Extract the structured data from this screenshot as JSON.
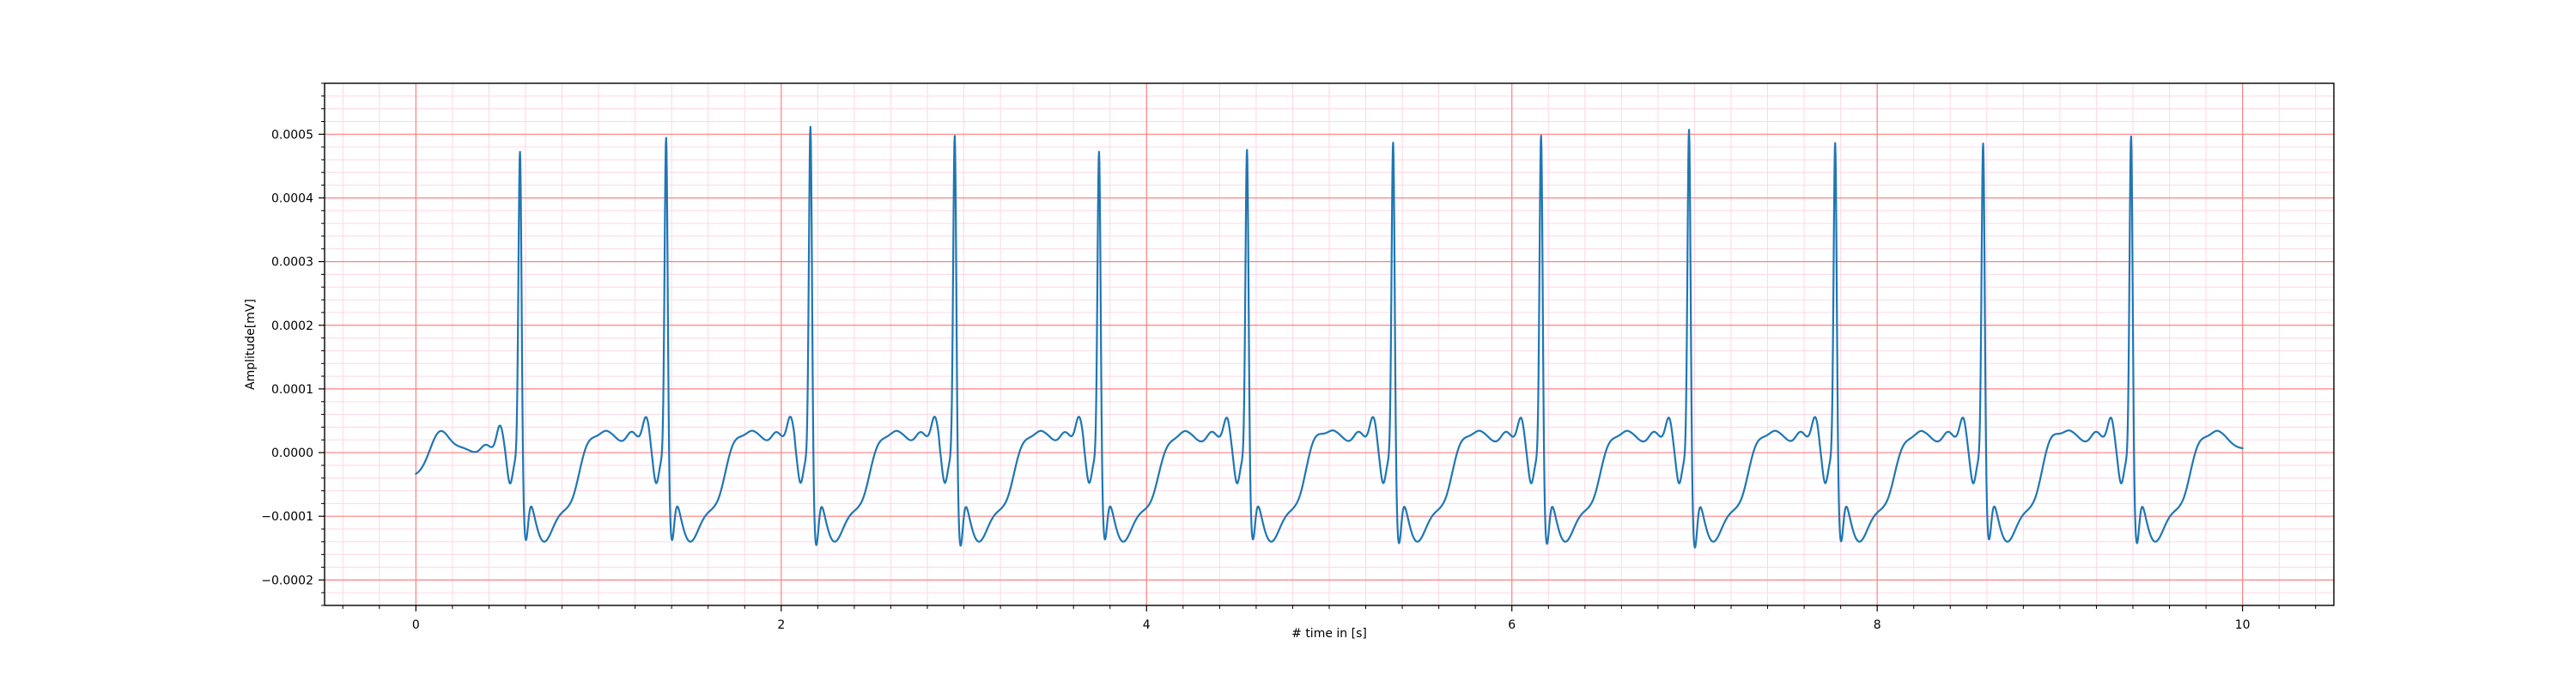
{
  "chart_data": {
    "type": "line",
    "title": "",
    "xlabel": "# time in [s]",
    "ylabel": "Amplitude[mV]",
    "xlim": [
      -0.5,
      10.5
    ],
    "ylim": [
      -0.00024,
      0.00058
    ],
    "x_ticks": [
      0,
      2,
      4,
      6,
      8,
      10
    ],
    "x_tick_labels": [
      "0",
      "2",
      "4",
      "6",
      "8",
      "10"
    ],
    "y_ticks": [
      -0.0002,
      -0.0001,
      0.0,
      0.0001,
      0.0002,
      0.0003,
      0.0004,
      0.0005
    ],
    "y_tick_labels": [
      "−0.0002",
      "−0.0001",
      "0.0000",
      "0.0001",
      "0.0002",
      "0.0003",
      "0.0004",
      "0.0005"
    ],
    "grid": {
      "major": true,
      "minor": true,
      "major_color": "#ff8080",
      "minor_color": "#ffd6e6"
    },
    "line_color": "#1f77b4",
    "series": [
      {
        "beats": [
          {
            "r_time": 0.57,
            "r_peak": 0.000502,
            "s_min": -0.000188,
            "t_peak": 7.7e-05
          },
          {
            "r_time": 1.37,
            "r_peak": 0.000524,
            "s_min": -0.000188,
            "t_peak": 7.8e-05
          },
          {
            "r_time": 2.16,
            "r_peak": 0.000542,
            "s_min": -0.000196,
            "t_peak": 7.5e-05
          },
          {
            "r_time": 2.95,
            "r_peak": 0.000528,
            "s_min": -0.000197,
            "t_peak": 7.5e-05
          },
          {
            "r_time": 3.74,
            "r_peak": 0.000502,
            "s_min": -0.000187,
            "t_peak": 7e-05
          },
          {
            "r_time": 4.55,
            "r_peak": 0.000505,
            "s_min": -0.000187,
            "t_peak": 8.5e-05
          },
          {
            "r_time": 5.35,
            "r_peak": 0.000517,
            "s_min": -0.000193,
            "t_peak": 7.8e-05
          },
          {
            "r_time": 6.16,
            "r_peak": 0.000528,
            "s_min": -0.000194,
            "t_peak": 7.6e-05
          },
          {
            "r_time": 6.97,
            "r_peak": 0.000538,
            "s_min": -0.0002,
            "t_peak": 7.7e-05
          },
          {
            "r_time": 7.77,
            "r_peak": 0.000516,
            "s_min": -0.00019,
            "t_peak": 7.2e-05
          },
          {
            "r_time": 8.58,
            "r_peak": 0.000515,
            "s_min": -0.000187,
            "t_peak": 8.5e-05
          },
          {
            "r_time": 9.39,
            "r_peak": 0.000527,
            "s_min": -0.000193,
            "t_peak": 7.7e-05
          }
        ],
        "start_value": -3.7e-05,
        "first_t_wave": {
          "time": 0.13,
          "peak": 8.7e-05
        },
        "end_value": 6e-06
      }
    ]
  }
}
